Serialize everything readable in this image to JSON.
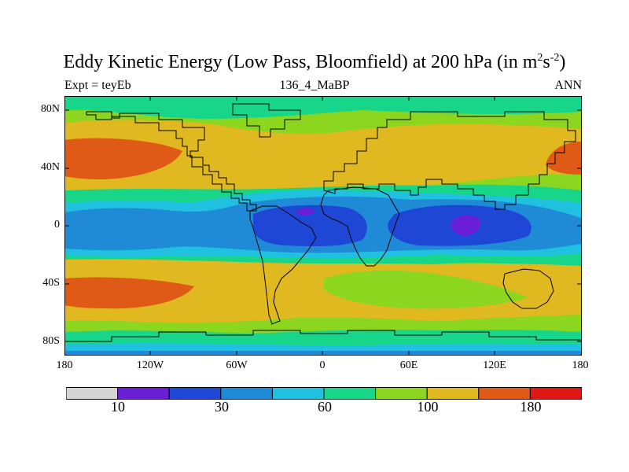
{
  "title": {
    "text": "Eddy Kinetic Energy (Low Pass, Bloomfield) at 200 hPa (in m",
    "sup1": "2",
    "mid": "s",
    "sup2": "-2",
    "close": ")"
  },
  "subtitle": {
    "left": "Expt = teyEb",
    "center": "136_4_MaBP",
    "right": "ANN"
  },
  "axes": {
    "y_ticks": [
      "80N",
      "40N",
      "0",
      "40S",
      "80S"
    ],
    "x_ticks": [
      "180",
      "120W",
      "60W",
      "0",
      "60E",
      "120E",
      "180"
    ]
  },
  "colorbar": {
    "colors": [
      "#d4d4d4",
      "#6a1fd6",
      "#1f47d6",
      "#1f8ad6",
      "#1fc0e0",
      "#17d68a",
      "#8cd61f",
      "#e0b81f",
      "#e05a17",
      "#e01717"
    ],
    "labels": [
      "10",
      "30",
      "60",
      "100",
      "180"
    ]
  },
  "field_colors": {
    "band_80": "#17d68a",
    "band_100": "#8cd61f",
    "band_140": "#e0b81f",
    "band_180": "#e05a17",
    "band_60": "#1fc0e0",
    "band_40": "#1f8ad6",
    "band_20": "#1f47d6",
    "band_10": "#6a1fd6",
    "coast": "#000000",
    "frame": "#000000"
  }
}
